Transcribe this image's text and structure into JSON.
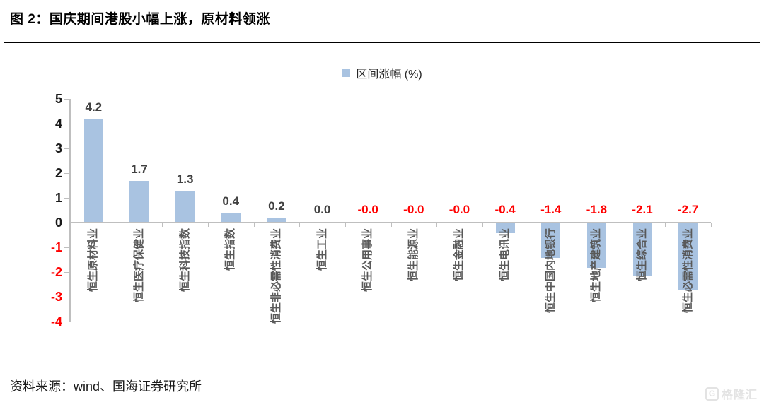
{
  "header": {
    "title": "图 2：国庆期间港股小幅上涨，原材料领涨"
  },
  "chart_data": {
    "type": "bar",
    "legend": "区间涨幅 (%)",
    "legend_position": "top-center",
    "categories": [
      "恒生原材料业",
      "恒生医疗保健业",
      "恒生科技指数",
      "恒生指数",
      "恒生非必需性消费业",
      "恒生工业",
      "恒生公用事业",
      "恒生能源业",
      "恒生金融业",
      "恒生电讯业",
      "恒生中国内地银行",
      "恒生地产建筑业",
      "恒生综合业",
      "恒生必需性消费业"
    ],
    "values": [
      4.2,
      1.7,
      1.3,
      0.4,
      0.2,
      0.0,
      -0.0,
      -0.0,
      -0.0,
      -0.4,
      -1.4,
      -1.8,
      -2.1,
      -2.7
    ],
    "value_labels": [
      "4.2",
      "1.7",
      "1.3",
      "0.4",
      "0.2",
      "0.0",
      "-0.0",
      "-0.0",
      "-0.0",
      "-0.4",
      "-1.4",
      "-1.8",
      "-2.1",
      "-2.7"
    ],
    "ylim": [
      -4,
      5
    ],
    "yticks": [
      5,
      4,
      3,
      2,
      1,
      0,
      -1,
      -2,
      -3,
      -4
    ],
    "grid": false,
    "bar_color": "#a9c3e1",
    "positive_text_color": "#404040",
    "negative_text_color": "#ff0000",
    "category_text_color": "#595959",
    "axis_color": "#bfbfbf",
    "tick_label_color": "#1a1a1a"
  },
  "footer": {
    "source": "资料来源：wind、国海证券研究所"
  },
  "watermark": {
    "icon": "G",
    "text": "格隆汇"
  }
}
